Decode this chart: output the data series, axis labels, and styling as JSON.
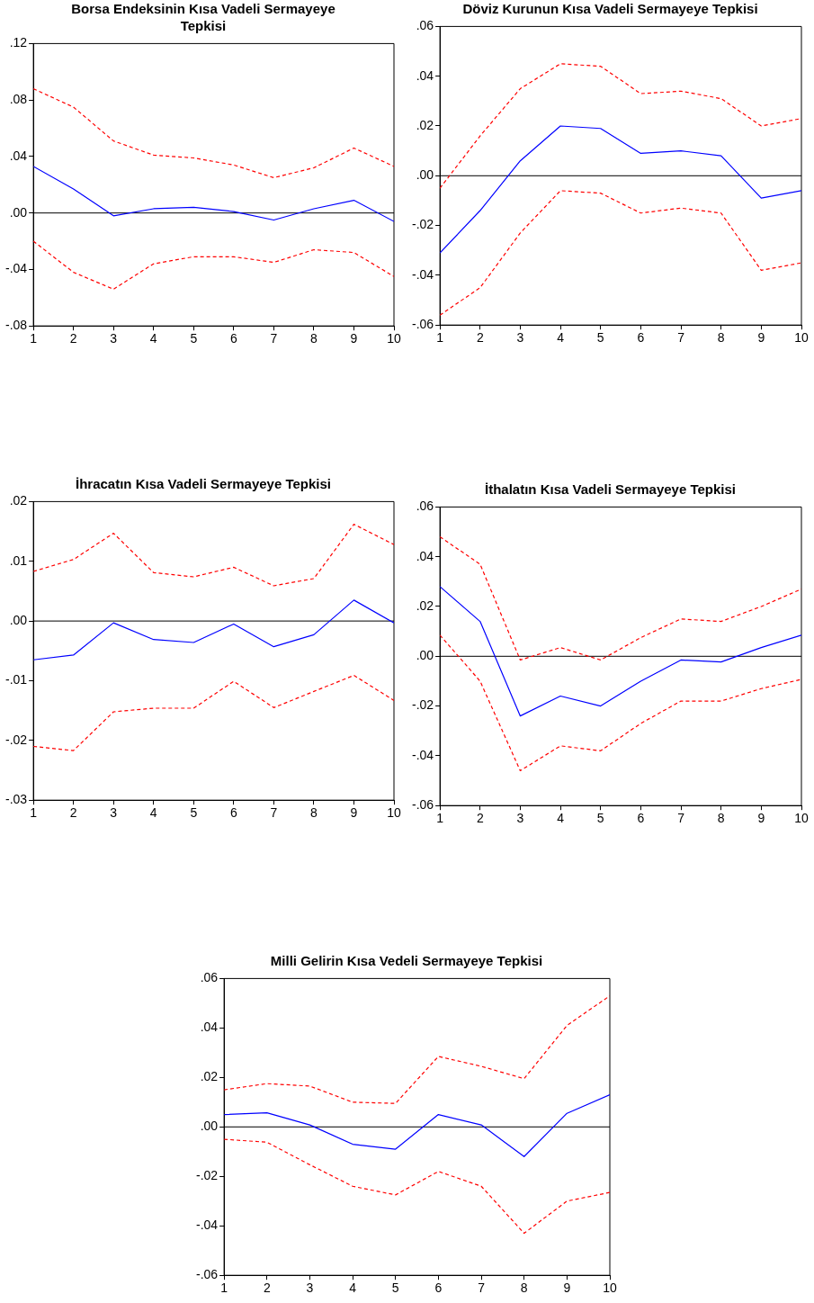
{
  "chart_data": [
    {
      "type": "line",
      "title": "Borsa Endeksinin Kısa Vadeli Sermayeye Tepkisi",
      "x": [
        1,
        2,
        3,
        4,
        5,
        6,
        7,
        8,
        9,
        10
      ],
      "xlim": [
        1,
        10
      ],
      "xticks": [
        1,
        2,
        3,
        4,
        5,
        6,
        7,
        8,
        9,
        10
      ],
      "ylim": [
        -0.08,
        0.12
      ],
      "yticks": [
        {
          "value": -0.08,
          "label": "-.08"
        },
        {
          "value": -0.04,
          "label": "-.04"
        },
        {
          "value": 0,
          "label": ".00"
        },
        {
          "value": 0.04,
          "label": ".04"
        },
        {
          "value": 0.08,
          "label": ".08"
        },
        {
          "value": 0.12,
          "label": ".12"
        }
      ],
      "grid": false,
      "legend": false,
      "marker": "none",
      "series": [
        {
          "color": "#0000ff",
          "line_style": "solid",
          "values": [
            0.033,
            0.017,
            -0.002,
            0.003,
            0.004,
            0.001,
            -0.005,
            0.003,
            0.009,
            -0.006
          ]
        },
        {
          "color": "#ff0000",
          "line_style": "dashed",
          "values": [
            0.088,
            0.075,
            0.051,
            0.041,
            0.039,
            0.034,
            0.025,
            0.032,
            0.046,
            0.033
          ]
        },
        {
          "color": "#ff0000",
          "line_style": "dashed",
          "values": [
            -0.02,
            -0.042,
            -0.054,
            -0.036,
            -0.031,
            -0.031,
            -0.035,
            -0.026,
            -0.028,
            -0.045
          ]
        }
      ],
      "ref_lines": [
        {
          "axis": "y",
          "value": 0,
          "color": "#000000"
        }
      ]
    },
    {
      "type": "line",
      "title": "Döviz Kurunun Kısa Vadeli Sermayeye Tepkisi",
      "x": [
        1,
        2,
        3,
        4,
        5,
        6,
        7,
        8,
        9,
        10
      ],
      "xlim": [
        1,
        10
      ],
      "xticks": [
        1,
        2,
        3,
        4,
        5,
        6,
        7,
        8,
        9,
        10
      ],
      "ylim": [
        -0.06,
        0.06
      ],
      "yticks": [
        {
          "value": -0.06,
          "label": "-.06"
        },
        {
          "value": -0.04,
          "label": "-.04"
        },
        {
          "value": -0.02,
          "label": "-.02"
        },
        {
          "value": 0,
          "label": ".00"
        },
        {
          "value": 0.02,
          "label": ".02"
        },
        {
          "value": 0.04,
          "label": ".04"
        },
        {
          "value": 0.06,
          "label": ".06"
        }
      ],
      "grid": false,
      "legend": false,
      "marker": "none",
      "series": [
        {
          "color": "#0000ff",
          "line_style": "solid",
          "values": [
            -0.031,
            -0.014,
            0.006,
            0.02,
            0.019,
            0.009,
            0.01,
            0.008,
            -0.009,
            -0.006
          ]
        },
        {
          "color": "#ff0000",
          "line_style": "dashed",
          "values": [
            -0.005,
            0.016,
            0.035,
            0.045,
            0.044,
            0.033,
            0.034,
            0.031,
            0.02,
            0.023
          ]
        },
        {
          "color": "#ff0000",
          "line_style": "dashed",
          "values": [
            -0.056,
            -0.045,
            -0.023,
            -0.006,
            -0.007,
            -0.015,
            -0.013,
            -0.015,
            -0.038,
            -0.035
          ]
        }
      ],
      "ref_lines": [
        {
          "axis": "y",
          "value": 0,
          "color": "#000000"
        }
      ]
    },
    {
      "type": "line",
      "title": "İhracatın Kısa Vadeli Sermayeye Tepkisi",
      "x": [
        1,
        2,
        3,
        4,
        5,
        6,
        7,
        8,
        9,
        10
      ],
      "xlim": [
        1,
        10
      ],
      "xticks": [
        1,
        2,
        3,
        4,
        5,
        6,
        7,
        8,
        9,
        10
      ],
      "ylim": [
        -0.03,
        0.02
      ],
      "yticks": [
        {
          "value": -0.03,
          "label": "-.03"
        },
        {
          "value": -0.02,
          "label": "-.02"
        },
        {
          "value": -0.01,
          "label": "-.01"
        },
        {
          "value": 0,
          "label": ".00"
        },
        {
          "value": 0.01,
          "label": ".01"
        },
        {
          "value": 0.02,
          "label": ".02"
        }
      ],
      "grid": false,
      "legend": false,
      "marker": "none",
      "series": [
        {
          "color": "#0000ff",
          "line_style": "solid",
          "values": [
            -0.0065,
            -0.0057,
            -0.0003,
            -0.0031,
            -0.0036,
            -0.0005,
            -0.0043,
            -0.0023,
            0.0035,
            -0.0003
          ]
        },
        {
          "color": "#ff0000",
          "line_style": "dashed",
          "values": [
            0.0083,
            0.0103,
            0.0147,
            0.0081,
            0.0074,
            0.009,
            0.0059,
            0.0071,
            0.0162,
            0.0128
          ]
        },
        {
          "color": "#ff0000",
          "line_style": "dashed",
          "values": [
            -0.021,
            -0.0217,
            -0.0152,
            -0.0146,
            -0.0146,
            -0.0101,
            -0.0145,
            -0.0118,
            -0.0091,
            -0.0133
          ]
        }
      ],
      "ref_lines": [
        {
          "axis": "y",
          "value": 0,
          "color": "#000000"
        }
      ]
    },
    {
      "type": "line",
      "title": "İthalatın Kısa Vadeli Sermayeye Tepkisi",
      "x": [
        1,
        2,
        3,
        4,
        5,
        6,
        7,
        8,
        9,
        10
      ],
      "xlim": [
        1,
        10
      ],
      "xticks": [
        1,
        2,
        3,
        4,
        5,
        6,
        7,
        8,
        9,
        10
      ],
      "ylim": [
        -0.06,
        0.06
      ],
      "yticks": [
        {
          "value": -0.06,
          "label": "-.06"
        },
        {
          "value": -0.04,
          "label": "-.04"
        },
        {
          "value": -0.02,
          "label": "-.02"
        },
        {
          "value": 0,
          "label": ".00"
        },
        {
          "value": 0.02,
          "label": ".02"
        },
        {
          "value": 0.04,
          "label": ".04"
        },
        {
          "value": 0.06,
          "label": ".06"
        }
      ],
      "grid": false,
      "legend": false,
      "marker": "none",
      "series": [
        {
          "color": "#0000ff",
          "line_style": "solid",
          "values": [
            0.028,
            0.014,
            -0.024,
            -0.016,
            -0.02,
            -0.01,
            -0.0015,
            -0.0023,
            0.0035,
            0.0085
          ]
        },
        {
          "color": "#ff0000",
          "line_style": "dashed",
          "values": [
            0.048,
            0.037,
            -0.0015,
            0.0035,
            -0.0015,
            0.0075,
            0.015,
            0.014,
            0.02,
            0.027
          ]
        },
        {
          "color": "#ff0000",
          "line_style": "dashed",
          "values": [
            0.0085,
            -0.01,
            -0.046,
            -0.036,
            -0.038,
            -0.027,
            -0.018,
            -0.018,
            -0.013,
            -0.0093
          ]
        }
      ],
      "ref_lines": [
        {
          "axis": "y",
          "value": 0,
          "color": "#000000"
        }
      ]
    },
    {
      "type": "line",
      "title": "Milli Gelirin Kısa Vedeli Sermayeye Tepkisi",
      "x": [
        1,
        2,
        3,
        4,
        5,
        6,
        7,
        8,
        9,
        10
      ],
      "xlim": [
        1,
        10
      ],
      "xticks": [
        1,
        2,
        3,
        4,
        5,
        6,
        7,
        8,
        9,
        10
      ],
      "ylim": [
        -0.06,
        0.06
      ],
      "yticks": [
        {
          "value": -0.06,
          "label": "-.06"
        },
        {
          "value": -0.04,
          "label": "-.04"
        },
        {
          "value": -0.02,
          "label": "-.02"
        },
        {
          "value": 0,
          "label": ".00"
        },
        {
          "value": 0.02,
          "label": ".02"
        },
        {
          "value": 0.04,
          "label": ".04"
        },
        {
          "value": 0.06,
          "label": ".06"
        }
      ],
      "grid": false,
      "legend": false,
      "marker": "none",
      "series": [
        {
          "color": "#0000ff",
          "line_style": "solid",
          "values": [
            0.005,
            0.0057,
            0.0008,
            -0.007,
            -0.009,
            0.005,
            0.0008,
            -0.012,
            0.0055,
            0.013
          ]
        },
        {
          "color": "#ff0000",
          "line_style": "dashed",
          "values": [
            0.015,
            0.0175,
            0.0165,
            0.01,
            0.0095,
            0.0285,
            0.0245,
            0.0195,
            0.041,
            0.053
          ]
        },
        {
          "color": "#ff0000",
          "line_style": "dashed",
          "values": [
            -0.005,
            -0.0062,
            -0.0153,
            -0.024,
            -0.0275,
            -0.018,
            -0.024,
            -0.043,
            -0.03,
            -0.0265
          ]
        }
      ],
      "ref_lines": [
        {
          "axis": "y",
          "value": 0,
          "color": "#000000"
        }
      ]
    }
  ]
}
